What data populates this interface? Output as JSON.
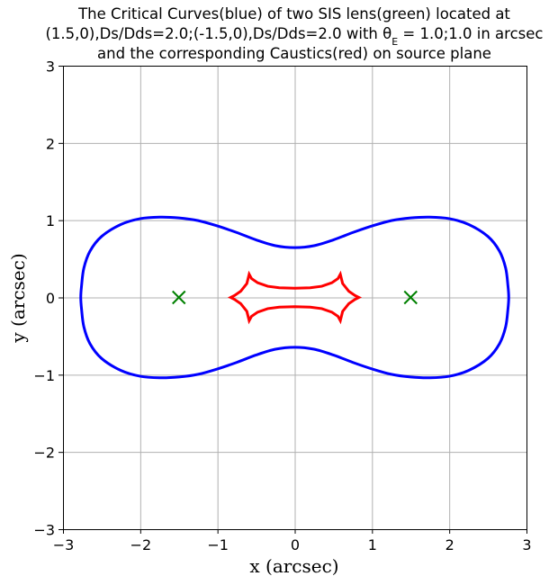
{
  "chart_data": {
    "type": "line",
    "title_lines": [
      "The Critical Curves(blue) of two SIS lens(green) located at",
      "(1.5,0),Ds/Dds=2.0;(-1.5,0),Ds/Dds=2.0 with θ",
      "E",
      " = 1.0;1.0 in arcsec",
      "and the corresponding Caustics(red) on source plane"
    ],
    "xlabel": "x (arcsec)",
    "ylabel": "y (arcsec)",
    "xlim": [
      -3,
      3
    ],
    "ylim": [
      -3,
      3
    ],
    "xticks": [
      -3,
      -2,
      -1,
      0,
      1,
      2,
      3
    ],
    "yticks": [
      -3,
      -2,
      -1,
      0,
      1,
      2,
      3
    ],
    "xtick_labels": [
      "−3",
      "−2",
      "−1",
      "0",
      "1",
      "2",
      "3"
    ],
    "ytick_labels": [
      "−3",
      "−2",
      "−1",
      "0",
      "1",
      "2",
      "3"
    ],
    "grid": true,
    "lenses": [
      {
        "x": 1.5,
        "y": 0,
        "ds_dds": 2.0,
        "theta_e": 1.0
      },
      {
        "x": -1.5,
        "y": 0,
        "ds_dds": 2.0,
        "theta_e": 1.0
      }
    ],
    "series": [
      {
        "role": "critical_curve",
        "color": "#0000ff",
        "marker": "dot",
        "upper": [
          [
            0,
            0.645
          ],
          [
            0.25,
            0.67
          ],
          [
            0.5,
            0.745
          ],
          [
            0.75,
            0.84
          ],
          [
            1.0,
            0.925
          ],
          [
            1.25,
            0.995
          ],
          [
            1.5,
            1.03
          ],
          [
            1.75,
            1.04
          ],
          [
            2.0,
            1.02
          ],
          [
            2.25,
            0.945
          ],
          [
            2.5,
            0.79
          ],
          [
            2.65,
            0.6
          ],
          [
            2.73,
            0.38
          ],
          [
            2.76,
            0.15
          ],
          [
            2.77,
            0
          ]
        ],
        "lower_mirror": true,
        "mirror_x": true
      },
      {
        "role": "caustic",
        "color": "#ff0000",
        "marker": "dot",
        "upper": [
          [
            0,
            0.12
          ],
          [
            0.2,
            0.125
          ],
          [
            0.35,
            0.145
          ],
          [
            0.48,
            0.19
          ],
          [
            0.56,
            0.245
          ],
          [
            0.59,
            0.3
          ],
          [
            0.62,
            0.18
          ],
          [
            0.7,
            0.08
          ],
          [
            0.78,
            0.025
          ],
          [
            0.83,
            0
          ]
        ],
        "lower_mirror": true,
        "mirror_x": true
      },
      {
        "role": "lens_position",
        "color": "#008000",
        "marker": "x",
        "points": [
          [
            1.5,
            0
          ],
          [
            -1.5,
            0
          ]
        ]
      }
    ]
  }
}
